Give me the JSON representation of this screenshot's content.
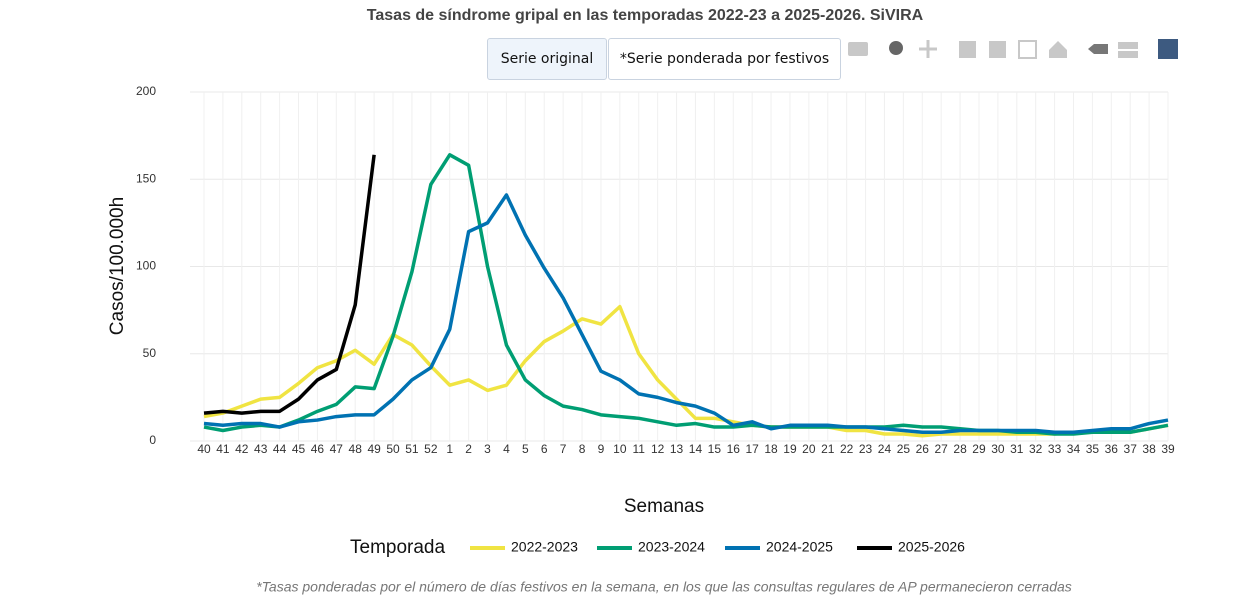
{
  "buttons": [
    "Serie original",
    "*Serie ponderada por festivos"
  ],
  "chart_data": {
    "type": "line",
    "title": "Tasas de síndrome gripal en las temporadas 2022-23 a 2025-2026. SiVIRA",
    "x_label": "Semanas",
    "y_label": "Casos/100.000h",
    "legend_title": "Temporada",
    "note": "*Tasas ponderadas por el número de días festivos en la semana, en los que las consultas regulares de AP permanecieron cerradas",
    "categories": [
      "40",
      "41",
      "42",
      "43",
      "44",
      "45",
      "46",
      "47",
      "48",
      "49",
      "50",
      "51",
      "52",
      "1",
      "2",
      "3",
      "4",
      "5",
      "6",
      "7",
      "8",
      "9",
      "10",
      "11",
      "12",
      "13",
      "14",
      "15",
      "16",
      "17",
      "18",
      "19",
      "20",
      "21",
      "22",
      "23",
      "24",
      "25",
      "26",
      "27",
      "28",
      "29",
      "30",
      "31",
      "32",
      "33",
      "34",
      "35",
      "36",
      "37",
      "38",
      "39"
    ],
    "ylim": [
      0,
      200
    ],
    "yticks": [
      0,
      50,
      100,
      150,
      200
    ],
    "grid": true,
    "legend": "bottom",
    "series": [
      {
        "name": "2022-2023",
        "color": "#f0e442",
        "values": [
          14,
          16,
          20,
          24,
          25,
          33,
          42,
          46,
          52,
          44,
          61,
          55,
          43,
          32,
          35,
          29,
          32,
          46,
          57,
          63,
          70,
          67,
          77,
          50,
          35,
          24,
          13,
          13,
          11,
          9,
          8,
          8,
          8,
          8,
          6,
          6,
          4,
          4,
          3,
          4,
          4,
          4,
          4,
          4,
          4,
          4,
          5,
          5,
          5,
          5,
          7,
          9
        ]
      },
      {
        "name": "2023-2024",
        "color": "#009e73",
        "values": [
          8,
          6,
          8,
          9,
          8,
          12,
          17,
          21,
          31,
          30,
          60,
          97,
          147,
          164,
          158,
          100,
          55,
          35,
          26,
          20,
          18,
          15,
          14,
          13,
          11,
          9,
          10,
          8,
          8,
          9,
          8,
          8,
          8,
          8,
          8,
          8,
          8,
          9,
          8,
          8,
          7,
          6,
          6,
          5,
          5,
          4,
          4,
          5,
          5,
          5,
          7,
          9
        ]
      },
      {
        "name": "2024-2025",
        "color": "#0072b2",
        "values": [
          10,
          9,
          10,
          10,
          8,
          11,
          12,
          14,
          15,
          15,
          24,
          35,
          42,
          64,
          120,
          125,
          141,
          118,
          99,
          82,
          61,
          40,
          35,
          27,
          25,
          22,
          20,
          16,
          9,
          11,
          7,
          9,
          9,
          9,
          8,
          8,
          7,
          6,
          5,
          5,
          6,
          6,
          6,
          6,
          6,
          5,
          5,
          6,
          7,
          7,
          10,
          12
        ]
      },
      {
        "name": "2025-2026",
        "color": "#000000",
        "values": [
          16,
          17,
          16,
          17,
          17,
          24,
          35,
          41,
          78,
          164,
          null,
          null,
          null,
          null,
          null,
          null,
          null,
          null,
          null,
          null,
          null,
          null,
          null,
          null,
          null,
          null,
          null,
          null,
          null,
          null,
          null,
          null,
          null,
          null,
          null,
          null,
          null,
          null,
          null,
          null,
          null,
          null,
          null,
          null,
          null,
          null,
          null,
          null,
          null,
          null,
          null,
          null
        ]
      }
    ]
  }
}
